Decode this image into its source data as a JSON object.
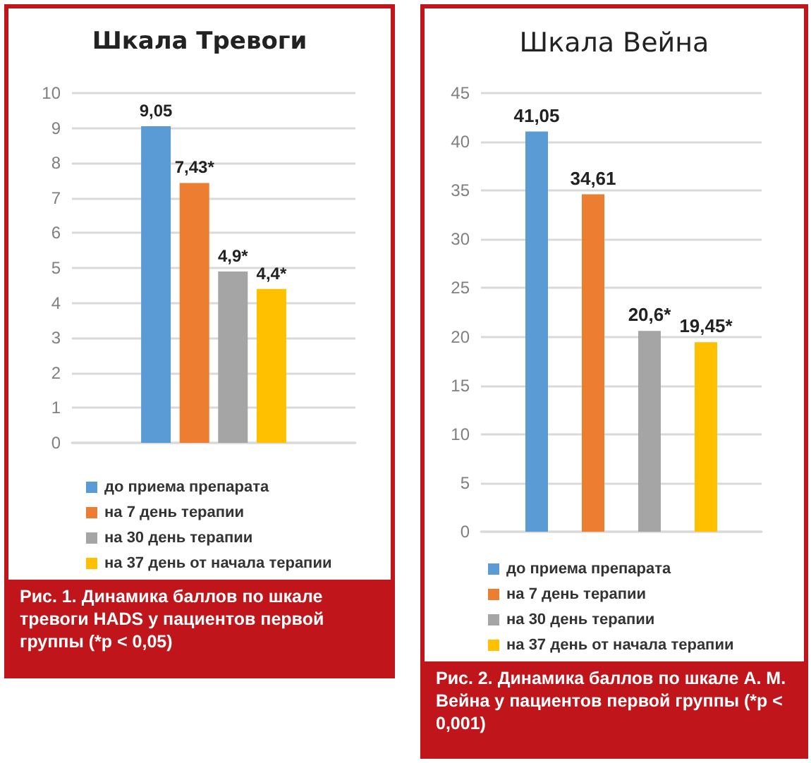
{
  "chart_data": [
    {
      "type": "bar",
      "title": "Шкала Тревоги",
      "categories": [
        null
      ],
      "series": [
        {
          "name": "до приема препарата",
          "color": "#5b9bd5",
          "values": [
            9.05
          ],
          "value_labels": [
            "9,05"
          ]
        },
        {
          "name": "на 7 день терапии",
          "color": "#ed7d31",
          "values": [
            7.43
          ],
          "value_labels": [
            "7,43*"
          ]
        },
        {
          "name": "на 30 день терапии",
          "color": "#a5a5a5",
          "values": [
            4.9
          ],
          "value_labels": [
            "4,9*"
          ]
        },
        {
          "name": "на 37 день от начала терапии",
          "color": "#ffc000",
          "values": [
            4.4
          ],
          "value_labels": [
            "4,4*"
          ]
        }
      ],
      "ylim": [
        0,
        10
      ],
      "yticks": [
        0,
        1,
        2,
        3,
        4,
        5,
        6,
        7,
        8,
        9,
        10
      ],
      "grid": "y",
      "legend": "bottom",
      "annotations": [
        "Рис. 1. Динамика баллов по шкале тревоги HADS у пациентов первой группы (*p < 0,05)"
      ]
    },
    {
      "type": "bar",
      "title": "Шкала Вейна",
      "categories": [
        null
      ],
      "series": [
        {
          "name": "до приема препарата",
          "color": "#5b9bd5",
          "values": [
            41.05
          ],
          "value_labels": [
            "41,05"
          ]
        },
        {
          "name": "на 7 день терапии",
          "color": "#ed7d31",
          "values": [
            34.61
          ],
          "value_labels": [
            "34,61"
          ]
        },
        {
          "name": "на 30 день терапии",
          "color": "#a5a5a5",
          "values": [
            20.6
          ],
          "value_labels": [
            "20,6*"
          ]
        },
        {
          "name": "на 37 день от начала терапии",
          "color": "#ffc000",
          "values": [
            19.45
          ],
          "value_labels": [
            "19,45*"
          ]
        }
      ],
      "ylim": [
        0,
        45
      ],
      "yticks": [
        0,
        5,
        10,
        15,
        20,
        25,
        30,
        35,
        40,
        45
      ],
      "grid": "y",
      "legend": "bottom",
      "annotations": [
        "Рис. 2. Динамика баллов по шкале А. М. Вейна у пациентов первой группы (*p < 0,001)"
      ]
    }
  ]
}
